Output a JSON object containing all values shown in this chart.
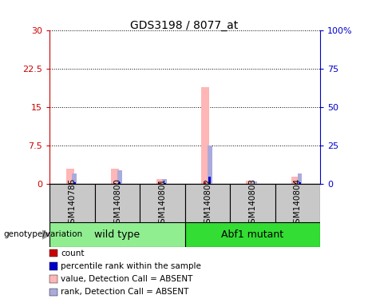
{
  "title": "GDS3198 / 8077_at",
  "samples": [
    "GSM140786",
    "GSM140800",
    "GSM140801",
    "GSM140802",
    "GSM140803",
    "GSM140804"
  ],
  "ylim_left": [
    0,
    30
  ],
  "ylim_right": [
    0,
    100
  ],
  "yticks_left": [
    0,
    7.5,
    15,
    22.5,
    30
  ],
  "yticks_right": [
    0,
    25,
    50,
    75,
    100
  ],
  "yticklabels_left": [
    "0",
    "7.5",
    "15",
    "22.5",
    "30"
  ],
  "yticklabels_right": [
    "0",
    "25",
    "50",
    "75",
    "100%"
  ],
  "left_axis_color": "#CC0000",
  "right_axis_color": "#0000CC",
  "value_absent": [
    3.0,
    3.0,
    1.0,
    19.0,
    0.7,
    1.5
  ],
  "rank_absent_pct": [
    7.0,
    9.0,
    3.5,
    25.0,
    2.0,
    7.0
  ],
  "count_values": [
    0.25,
    0.25,
    0.15,
    0.3,
    0.08,
    0.18
  ],
  "percentile_values": [
    1.0,
    1.5,
    0.6,
    5.0,
    0.4,
    1.2
  ],
  "wild_type_color": "#90EE90",
  "abf1_color": "#33DD33",
  "gray_box_color": "#C8C8C8",
  "pink": "#FFB6B6",
  "pale_blue": "#AAAADD",
  "red": "#CC0000",
  "blue": "#0000CC"
}
